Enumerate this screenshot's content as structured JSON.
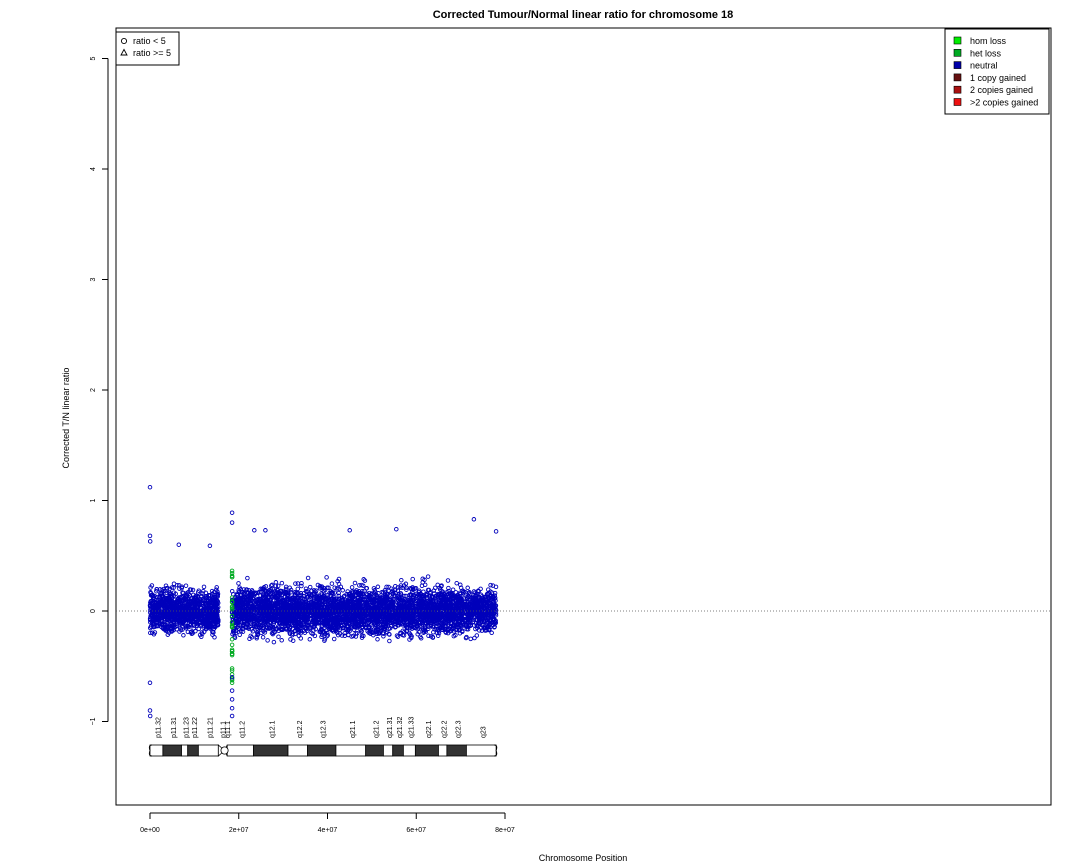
{
  "chart_data": {
    "type": "scatter",
    "title": "Corrected Tumour/Normal linear ratio for chromosome  18",
    "xlabel": "Chromosome Position",
    "ylabel": "Corrected T/N linear ratio",
    "xlim": [
      0,
      80000000
    ],
    "ylim": [
      -1.75,
      5.3
    ],
    "x_ticks": [
      0,
      20000000,
      40000000,
      60000000,
      80000000
    ],
    "x_tick_labels": [
      "0e+00",
      "2e+07",
      "4e+07",
      "6e+07",
      "8e+07"
    ],
    "y_ticks": [
      -1,
      0,
      1,
      2,
      3,
      4,
      5
    ],
    "y_tick_labels": [
      "−1",
      "0",
      "1",
      "2",
      "3",
      "4",
      "5"
    ],
    "reference_line_y": 0,
    "point_colors": {
      "neutral": "#0000bb",
      "het_loss": "#00aa22"
    },
    "neutral_segments": [
      {
        "start": 0,
        "end": 15400000,
        "center": 0.0,
        "spread": 0.42
      },
      {
        "start": 18500000,
        "end": 78000000,
        "center": 0.0,
        "spread": 0.46
      }
    ],
    "outliers": [
      {
        "x": 0,
        "y": 1.12
      },
      {
        "x": 0,
        "y": 0.68
      },
      {
        "x": 50000,
        "y": 0.63
      },
      {
        "x": 0,
        "y": -0.9
      },
      {
        "x": 50000,
        "y": -0.95
      },
      {
        "x": 0,
        "y": -0.65
      },
      {
        "x": 18500000,
        "y": 0.89
      },
      {
        "x": 18500000,
        "y": 0.8
      },
      {
        "x": 18500000,
        "y": -0.95
      },
      {
        "x": 18500000,
        "y": -0.88
      },
      {
        "x": 18500000,
        "y": -0.8
      },
      {
        "x": 18500000,
        "y": -0.72
      },
      {
        "x": 18500000,
        "y": -0.6
      },
      {
        "x": 73000000,
        "y": 0.83
      },
      {
        "x": 78000000,
        "y": 0.72
      },
      {
        "x": 26000000,
        "y": 0.73
      },
      {
        "x": 23500000,
        "y": 0.73
      },
      {
        "x": 45000000,
        "y": 0.73
      },
      {
        "x": 55500000,
        "y": 0.74
      },
      {
        "x": 6500000,
        "y": 0.6
      },
      {
        "x": 13500000,
        "y": 0.59
      }
    ],
    "het_loss_points": {
      "x": 18500000,
      "y_min": -0.65,
      "y_max": 0.4
    },
    "legend_shape": {
      "position": "top-left",
      "entries": [
        {
          "symbol": "circle",
          "label": "ratio < 5"
        },
        {
          "symbol": "triangle",
          "label": "ratio >= 5"
        }
      ]
    },
    "legend_color": {
      "position": "top-right",
      "entries": [
        {
          "color": "#00ee00",
          "label": "hom loss"
        },
        {
          "color": "#00aa22",
          "label": "het loss"
        },
        {
          "color": "#0000aa",
          "label": "neutral"
        },
        {
          "color": "#661111",
          "label": "1 copy gained"
        },
        {
          "color": "#aa1111",
          "label": "2 copies gained"
        },
        {
          "color": "#ee1111",
          "label": ">2 copies gained"
        }
      ]
    },
    "ideogram": {
      "centromere": 16800000,
      "length": 78000000,
      "bands": [
        {
          "name": "p11.32",
          "start": 0,
          "end": 2900000,
          "stain": "white"
        },
        {
          "name": "p11.31",
          "start": 2900000,
          "end": 7100000,
          "stain": "black"
        },
        {
          "name": "p11.23",
          "start": 7100000,
          "end": 8500000,
          "stain": "white"
        },
        {
          "name": "p11.22",
          "start": 8500000,
          "end": 10900000,
          "stain": "black"
        },
        {
          "name": "p11.21",
          "start": 10900000,
          "end": 15400000,
          "stain": "white"
        },
        {
          "name": "p11.1",
          "start": 15400000,
          "end": 16800000,
          "stain": "acen"
        },
        {
          "name": "q11.1",
          "start": 16800000,
          "end": 17400000,
          "stain": "hatch"
        },
        {
          "name": "q11.2",
          "start": 17400000,
          "end": 23300000,
          "stain": "white"
        },
        {
          "name": "q12.1",
          "start": 23300000,
          "end": 31100000,
          "stain": "black"
        },
        {
          "name": "q12.2",
          "start": 31100000,
          "end": 35500000,
          "stain": "white"
        },
        {
          "name": "q12.3",
          "start": 35500000,
          "end": 41900000,
          "stain": "black"
        },
        {
          "name": "q21.1",
          "start": 41900000,
          "end": 48600000,
          "stain": "white"
        },
        {
          "name": "q21.2",
          "start": 48600000,
          "end": 52600000,
          "stain": "black"
        },
        {
          "name": "q21.31",
          "start": 52600000,
          "end": 54700000,
          "stain": "white"
        },
        {
          "name": "q21.32",
          "start": 54700000,
          "end": 57100000,
          "stain": "black"
        },
        {
          "name": "q21.33",
          "start": 57100000,
          "end": 59800000,
          "stain": "white"
        },
        {
          "name": "q22.1",
          "start": 59800000,
          "end": 65000000,
          "stain": "black"
        },
        {
          "name": "q22.2",
          "start": 65000000,
          "end": 66900000,
          "stain": "white"
        },
        {
          "name": "q22.3",
          "start": 66900000,
          "end": 71300000,
          "stain": "black"
        },
        {
          "name": "q23",
          "start": 71300000,
          "end": 78000000,
          "stain": "white"
        }
      ]
    }
  }
}
